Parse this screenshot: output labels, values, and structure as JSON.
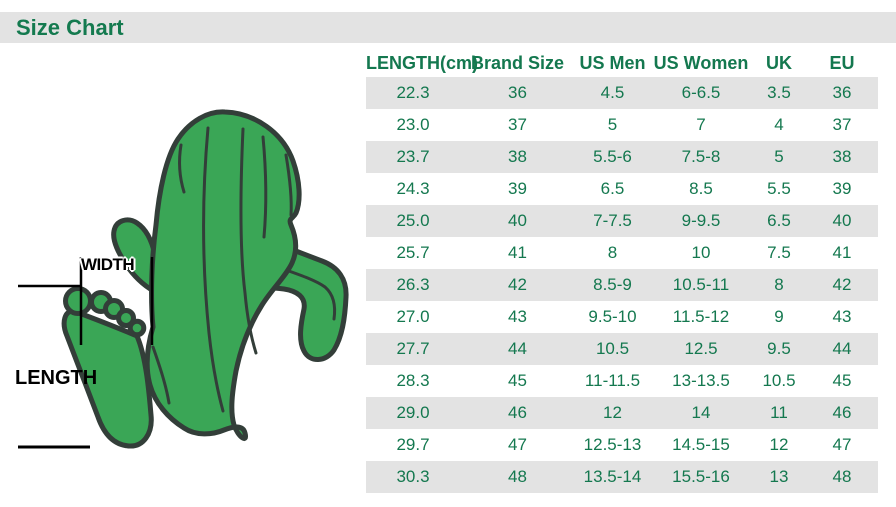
{
  "page": {
    "title": "Size Chart"
  },
  "diagram": {
    "width_label": "WIDTH",
    "length_label": "LENGTH"
  },
  "chart_data": {
    "type": "table",
    "title": "Size Chart",
    "columns": [
      "LENGTH(cm)",
      "Brand Size",
      "US Men",
      "US Women",
      "UK",
      "EU"
    ],
    "rows": [
      [
        "22.3",
        "36",
        "4.5",
        "6-6.5",
        "3.5",
        "36"
      ],
      [
        "23.0",
        "37",
        "5",
        "7",
        "4",
        "37"
      ],
      [
        "23.7",
        "38",
        "5.5-6",
        "7.5-8",
        "5",
        "38"
      ],
      [
        "24.3",
        "39",
        "6.5",
        "8.5",
        "5.5",
        "39"
      ],
      [
        "25.0",
        "40",
        "7-7.5",
        "9-9.5",
        "6.5",
        "40"
      ],
      [
        "25.7",
        "41",
        "8",
        "10",
        "7.5",
        "41"
      ],
      [
        "26.3",
        "42",
        "8.5-9",
        "10.5-11",
        "8",
        "42"
      ],
      [
        "27.0",
        "43",
        "9.5-10",
        "11.5-12",
        "9",
        "43"
      ],
      [
        "27.7",
        "44",
        "10.5",
        "12.5",
        "9.5",
        "44"
      ],
      [
        "28.3",
        "45",
        "11-11.5",
        "13-13.5",
        "10.5",
        "45"
      ],
      [
        "29.0",
        "46",
        "12",
        "14",
        "11",
        "46"
      ],
      [
        "29.7",
        "47",
        "12.5-13",
        "14.5-15",
        "12",
        "47"
      ],
      [
        "30.3",
        "48",
        "13.5-14",
        "15.5-16",
        "13",
        "48"
      ]
    ]
  },
  "colors": {
    "accent_green_text": "#14784f",
    "banner_gray": "#e3e3e3",
    "row_stripe_gray": "#e3e3e3",
    "cactus_green": "#3aa656",
    "cactus_outline": "#333e39",
    "measure_line_black": "#000000"
  }
}
